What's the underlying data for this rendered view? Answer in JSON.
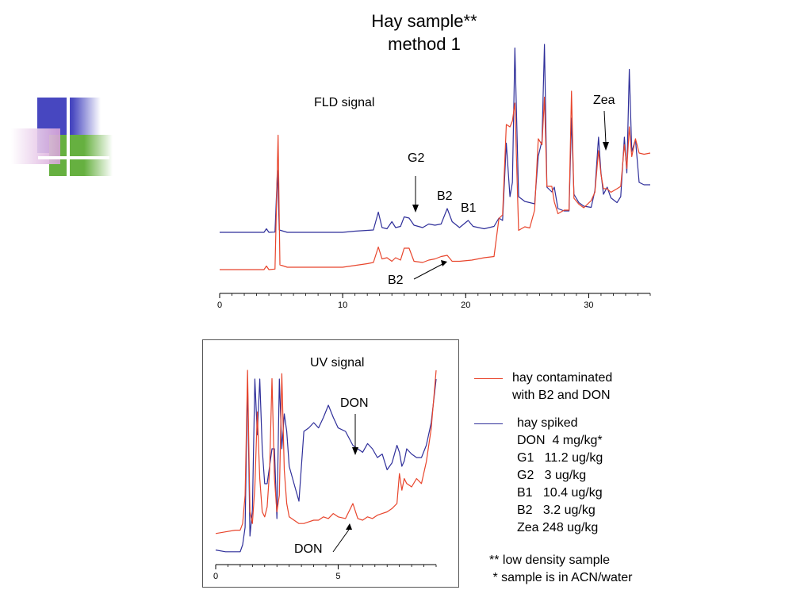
{
  "header": {
    "title_line1": "Hay sample**",
    "title_line2": "method 1"
  },
  "colors": {
    "contaminated": "#e8452c",
    "spiked": "#2f2f9a",
    "logo_blue": "#4747c0",
    "logo_green": "#66b040",
    "logo_pink": "#d6a2d8"
  },
  "fld": {
    "label": "FLD signal",
    "annotations": {
      "g2": "G2",
      "b2_top": "B2",
      "b1": "B1",
      "zea": "Zea",
      "b2_bottom": "B2"
    }
  },
  "uv": {
    "label": "UV signal",
    "annotations": {
      "don_top": "DON",
      "don_bottom": "DON"
    }
  },
  "legend": {
    "contaminated_lines": [
      "hay contaminated",
      "with B2 and DON"
    ],
    "spiked_title": "hay spiked",
    "spiked_items": [
      "DON  4 mg/kg*",
      "G1   11.2 ug/kg",
      "G2   3 ug/kg",
      "B1   10.4 ug/kg",
      "B2   3.2 ug/kg",
      "Zea 248 ug/kg"
    ]
  },
  "notes": [
    "** low density sample",
    " * sample is in ACN/water"
  ],
  "chart_data": [
    {
      "type": "line",
      "name": "FLD signal",
      "xlim": [
        0,
        35
      ],
      "x_ticks": [
        0,
        10,
        20,
        30
      ],
      "x_minor_step": 1,
      "series": [
        {
          "color_key": "spiked",
          "points": [
            [
              0,
              0
            ],
            [
              3.6,
              0
            ],
            [
              3.8,
              3
            ],
            [
              4.0,
              0
            ],
            [
              4.5,
              0.2
            ],
            [
              4.7,
              52
            ],
            [
              4.85,
              2
            ],
            [
              5.5,
              0
            ],
            [
              10,
              0
            ],
            [
              11,
              1
            ],
            [
              12.5,
              2
            ],
            [
              12.9,
              17
            ],
            [
              13.2,
              4
            ],
            [
              13.6,
              3
            ],
            [
              14.0,
              9
            ],
            [
              14.3,
              4
            ],
            [
              14.7,
              5
            ],
            [
              15.0,
              13
            ],
            [
              15.4,
              12
            ],
            [
              15.8,
              6
            ],
            [
              16.5,
              4
            ],
            [
              17.0,
              7
            ],
            [
              17.5,
              6
            ],
            [
              18.0,
              7
            ],
            [
              18.5,
              20
            ],
            [
              18.9,
              9
            ],
            [
              19.5,
              4
            ],
            [
              20.2,
              10
            ],
            [
              20.6,
              5
            ],
            [
              21.5,
              3
            ],
            [
              22.3,
              5
            ],
            [
              22.7,
              12
            ],
            [
              23.0,
              10
            ],
            [
              23.3,
              75
            ],
            [
              23.6,
              30
            ],
            [
              23.8,
              42
            ],
            [
              24.0,
              155
            ],
            [
              24.3,
              30
            ],
            [
              24.8,
              26
            ],
            [
              25.2,
              25
            ],
            [
              25.6,
              24
            ],
            [
              25.9,
              64
            ],
            [
              26.2,
              77
            ],
            [
              26.4,
              158
            ],
            [
              26.6,
              38
            ],
            [
              27.0,
              34
            ],
            [
              27.2,
              38
            ],
            [
              27.5,
              20
            ],
            [
              28.0,
              18
            ],
            [
              28.4,
              18
            ],
            [
              28.6,
              96
            ],
            [
              28.8,
              32
            ],
            [
              29.2,
              25
            ],
            [
              29.6,
              22
            ],
            [
              30.2,
              21
            ],
            [
              30.5,
              35
            ],
            [
              30.8,
              80
            ],
            [
              31.0,
              50
            ],
            [
              31.2,
              32
            ],
            [
              31.5,
              38
            ],
            [
              31.8,
              29
            ],
            [
              32.3,
              25
            ],
            [
              32.6,
              30
            ],
            [
              32.9,
              80
            ],
            [
              33.1,
              50
            ],
            [
              33.3,
              137
            ],
            [
              33.5,
              68
            ],
            [
              33.8,
              78
            ],
            [
              34.1,
              42
            ],
            [
              34.5,
              40
            ],
            [
              35,
              40
            ]
          ]
        },
        {
          "color_key": "contaminated",
          "points": [
            [
              0,
              0
            ],
            [
              3.6,
              0
            ],
            [
              3.8,
              3
            ],
            [
              4.0,
              0
            ],
            [
              4.5,
              0.5
            ],
            [
              4.75,
              113
            ],
            [
              4.9,
              4
            ],
            [
              5.5,
              2
            ],
            [
              10,
              2
            ],
            [
              12.0,
              5
            ],
            [
              12.5,
              6
            ],
            [
              12.9,
              19
            ],
            [
              13.2,
              9
            ],
            [
              13.6,
              10
            ],
            [
              14.0,
              7
            ],
            [
              14.3,
              10
            ],
            [
              14.7,
              8
            ],
            [
              15.0,
              18
            ],
            [
              15.4,
              18
            ],
            [
              15.8,
              7
            ],
            [
              16.5,
              6
            ],
            [
              17.0,
              8
            ],
            [
              17.5,
              9
            ],
            [
              18.0,
              11
            ],
            [
              18.5,
              12
            ],
            [
              18.9,
              7
            ],
            [
              19.5,
              7
            ],
            [
              20.5,
              8
            ],
            [
              21.5,
              10
            ],
            [
              22.3,
              11
            ],
            [
              22.7,
              43
            ],
            [
              23.0,
              46
            ],
            [
              23.3,
              122
            ],
            [
              23.6,
              120
            ],
            [
              23.8,
              125
            ],
            [
              24.0,
              140
            ],
            [
              24.3,
              33
            ],
            [
              24.8,
              36
            ],
            [
              25.2,
              35
            ],
            [
              25.6,
              50
            ],
            [
              25.9,
              110
            ],
            [
              26.2,
              105
            ],
            [
              26.4,
              145
            ],
            [
              26.6,
              70
            ],
            [
              27.0,
              70
            ],
            [
              27.2,
              57
            ],
            [
              27.5,
              47
            ],
            [
              28.0,
              50
            ],
            [
              28.4,
              50
            ],
            [
              28.6,
              150
            ],
            [
              28.8,
              60
            ],
            [
              29.2,
              55
            ],
            [
              29.6,
              52
            ],
            [
              30.2,
              58
            ],
            [
              30.5,
              65
            ],
            [
              30.8,
              100
            ],
            [
              31.0,
              80
            ],
            [
              31.2,
              68
            ],
            [
              31.5,
              68
            ],
            [
              31.8,
              65
            ],
            [
              32.3,
              68
            ],
            [
              32.6,
              70
            ],
            [
              32.9,
              105
            ],
            [
              33.1,
              85
            ],
            [
              33.3,
              120
            ],
            [
              33.5,
              95
            ],
            [
              33.8,
              110
            ],
            [
              34.1,
              98
            ],
            [
              34.5,
              97
            ],
            [
              35,
              98
            ]
          ]
        }
      ]
    },
    {
      "type": "line",
      "name": "UV signal",
      "xlim": [
        0,
        9
      ],
      "x_ticks": [
        0,
        5
      ],
      "x_minor_step": 0.5,
      "series": [
        {
          "color_key": "spiked",
          "points": [
            [
              0,
              2
            ],
            [
              0.4,
              1
            ],
            [
              0.8,
              1
            ],
            [
              1.0,
              1
            ],
            [
              1.1,
              5
            ],
            [
              1.2,
              15
            ],
            [
              1.3,
              99
            ],
            [
              1.4,
              10
            ],
            [
              1.5,
              25
            ],
            [
              1.6,
              100
            ],
            [
              1.7,
              68
            ],
            [
              1.8,
              100
            ],
            [
              1.9,
              60
            ],
            [
              2.0,
              40
            ],
            [
              2.1,
              40
            ],
            [
              2.2,
              50
            ],
            [
              2.3,
              60
            ],
            [
              2.4,
              60
            ],
            [
              2.5,
              20
            ],
            [
              2.6,
              100
            ],
            [
              2.7,
              60
            ],
            [
              2.8,
              80
            ],
            [
              2.9,
              70
            ],
            [
              3.0,
              50
            ],
            [
              3.2,
              40
            ],
            [
              3.4,
              30
            ],
            [
              3.5,
              50
            ],
            [
              3.6,
              70
            ],
            [
              3.8,
              72
            ],
            [
              4.0,
              75
            ],
            [
              4.2,
              72
            ],
            [
              4.4,
              78
            ],
            [
              4.6,
              85
            ],
            [
              4.8,
              78
            ],
            [
              5.0,
              72
            ],
            [
              5.3,
              70
            ],
            [
              5.6,
              62
            ],
            [
              5.8,
              60
            ],
            [
              6.0,
              58
            ],
            [
              6.2,
              63
            ],
            [
              6.4,
              60
            ],
            [
              6.6,
              55
            ],
            [
              6.8,
              57
            ],
            [
              7.0,
              48
            ],
            [
              7.2,
              52
            ],
            [
              7.4,
              62
            ],
            [
              7.5,
              58
            ],
            [
              7.6,
              50
            ],
            [
              7.7,
              53
            ],
            [
              7.8,
              60
            ],
            [
              8.0,
              57
            ],
            [
              8.2,
              55
            ],
            [
              8.4,
              55
            ],
            [
              8.6,
              62
            ],
            [
              8.8,
              75
            ],
            [
              9.0,
              100
            ]
          ]
        },
        {
          "color_key": "contaminated",
          "points": [
            [
              0,
              12
            ],
            [
              0.4,
              13
            ],
            [
              0.8,
              14
            ],
            [
              1.0,
              14
            ],
            [
              1.1,
              18
            ],
            [
              1.2,
              35
            ],
            [
              1.3,
              110
            ],
            [
              1.4,
              25
            ],
            [
              1.5,
              18
            ],
            [
              1.6,
              40
            ],
            [
              1.7,
              85
            ],
            [
              1.8,
              45
            ],
            [
              1.9,
              25
            ],
            [
              2.0,
              22
            ],
            [
              2.1,
              28
            ],
            [
              2.2,
              50
            ],
            [
              2.3,
              105
            ],
            [
              2.4,
              45
            ],
            [
              2.5,
              25
            ],
            [
              2.6,
              35
            ],
            [
              2.7,
              108
            ],
            [
              2.8,
              50
            ],
            [
              2.9,
              30
            ],
            [
              3.0,
              22
            ],
            [
              3.2,
              20
            ],
            [
              3.4,
              18
            ],
            [
              3.5,
              18
            ],
            [
              3.6,
              18
            ],
            [
              3.8,
              19
            ],
            [
              4.0,
              20
            ],
            [
              4.2,
              20
            ],
            [
              4.4,
              22
            ],
            [
              4.6,
              21
            ],
            [
              4.8,
              24
            ],
            [
              5.0,
              22
            ],
            [
              5.3,
              21
            ],
            [
              5.6,
              30
            ],
            [
              5.8,
              21
            ],
            [
              6.0,
              20
            ],
            [
              6.2,
              22
            ],
            [
              6.4,
              21
            ],
            [
              6.6,
              23
            ],
            [
              6.8,
              24
            ],
            [
              7.0,
              25
            ],
            [
              7.2,
              27
            ],
            [
              7.4,
              30
            ],
            [
              7.5,
              48
            ],
            [
              7.6,
              38
            ],
            [
              7.7,
              45
            ],
            [
              7.8,
              42
            ],
            [
              8.0,
              40
            ],
            [
              8.2,
              45
            ],
            [
              8.4,
              42
            ],
            [
              8.6,
              55
            ],
            [
              8.8,
              75
            ],
            [
              9.0,
              110
            ]
          ]
        }
      ]
    }
  ]
}
